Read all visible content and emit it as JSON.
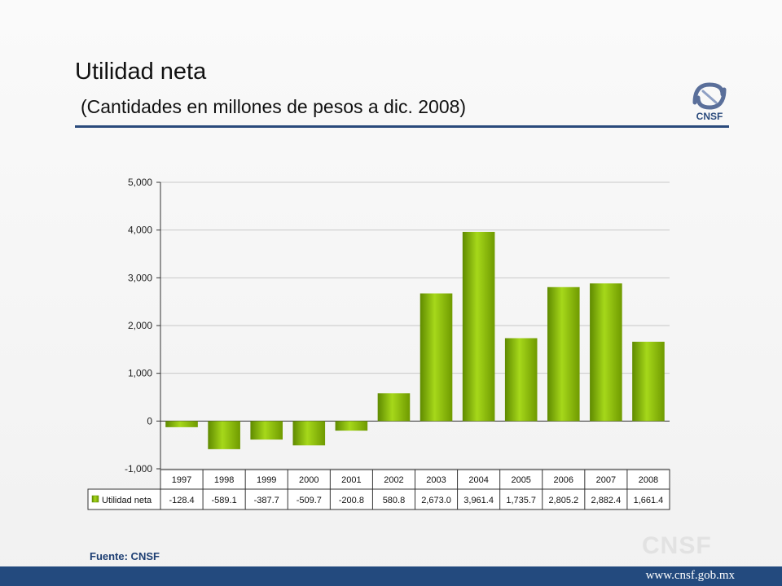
{
  "header": {
    "title": "Utilidad neta",
    "subtitle": "(Cantidades en millones de pesos a dic. 2008)",
    "logo_text": "CNSF"
  },
  "chart_data": {
    "type": "bar",
    "title": "",
    "xlabel": "",
    "ylabel": "",
    "ylim": [
      -1000,
      5000
    ],
    "yticks": [
      -1000,
      0,
      1000,
      2000,
      3000,
      4000,
      5000
    ],
    "ytick_labels": [
      "-1,000",
      "0",
      "1,000",
      "2,000",
      "3,000",
      "4,000",
      "5,000"
    ],
    "grid": true,
    "legend": "table-row-left",
    "categories": [
      "1997",
      "1998",
      "1999",
      "2000",
      "2001",
      "2002",
      "2003",
      "2004",
      "2005",
      "2006",
      "2007",
      "2008"
    ],
    "series": [
      {
        "name": "Utilidad neta",
        "values": [
          -128.4,
          -589.1,
          -387.7,
          -509.7,
          -200.8,
          580.8,
          2673.0,
          3961.4,
          1735.7,
          2805.2,
          2882.4,
          1661.4
        ],
        "labels": [
          "-128.4",
          "-589.1",
          "-387.7",
          "-509.7",
          "-200.8",
          "580.8",
          "2,673.0",
          "3,961.4",
          "1,735.7",
          "2,805.2",
          "2,882.4",
          "1,661.4"
        ],
        "color": "#8cc000"
      }
    ]
  },
  "footer": {
    "source": "Fuente: CNSF",
    "watermark": "CNSF",
    "url": "www.cnsf.gob.mx"
  },
  "colors": {
    "accent": "#234a7e",
    "bar": "#8cc000"
  }
}
